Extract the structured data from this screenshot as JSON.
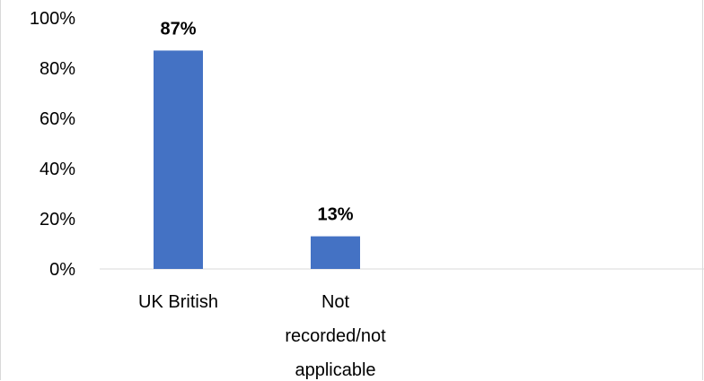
{
  "chart_data": {
    "type": "bar",
    "categories": [
      [
        "UK British"
      ],
      [
        "Not",
        "recorded/not",
        "applicable"
      ]
    ],
    "values": [
      87,
      13
    ],
    "data_labels": [
      "87%",
      "13%"
    ],
    "ylim": [
      0,
      100
    ],
    "yticks": [
      0,
      20,
      40,
      60,
      80,
      100
    ],
    "ytick_labels": [
      "0%",
      "20%",
      "40%",
      "60%",
      "80%",
      "100%"
    ],
    "bar_color": "#4472C4",
    "axis_color": "#d9d9d9",
    "grid": false,
    "title": "",
    "xlabel": "",
    "ylabel": ""
  }
}
